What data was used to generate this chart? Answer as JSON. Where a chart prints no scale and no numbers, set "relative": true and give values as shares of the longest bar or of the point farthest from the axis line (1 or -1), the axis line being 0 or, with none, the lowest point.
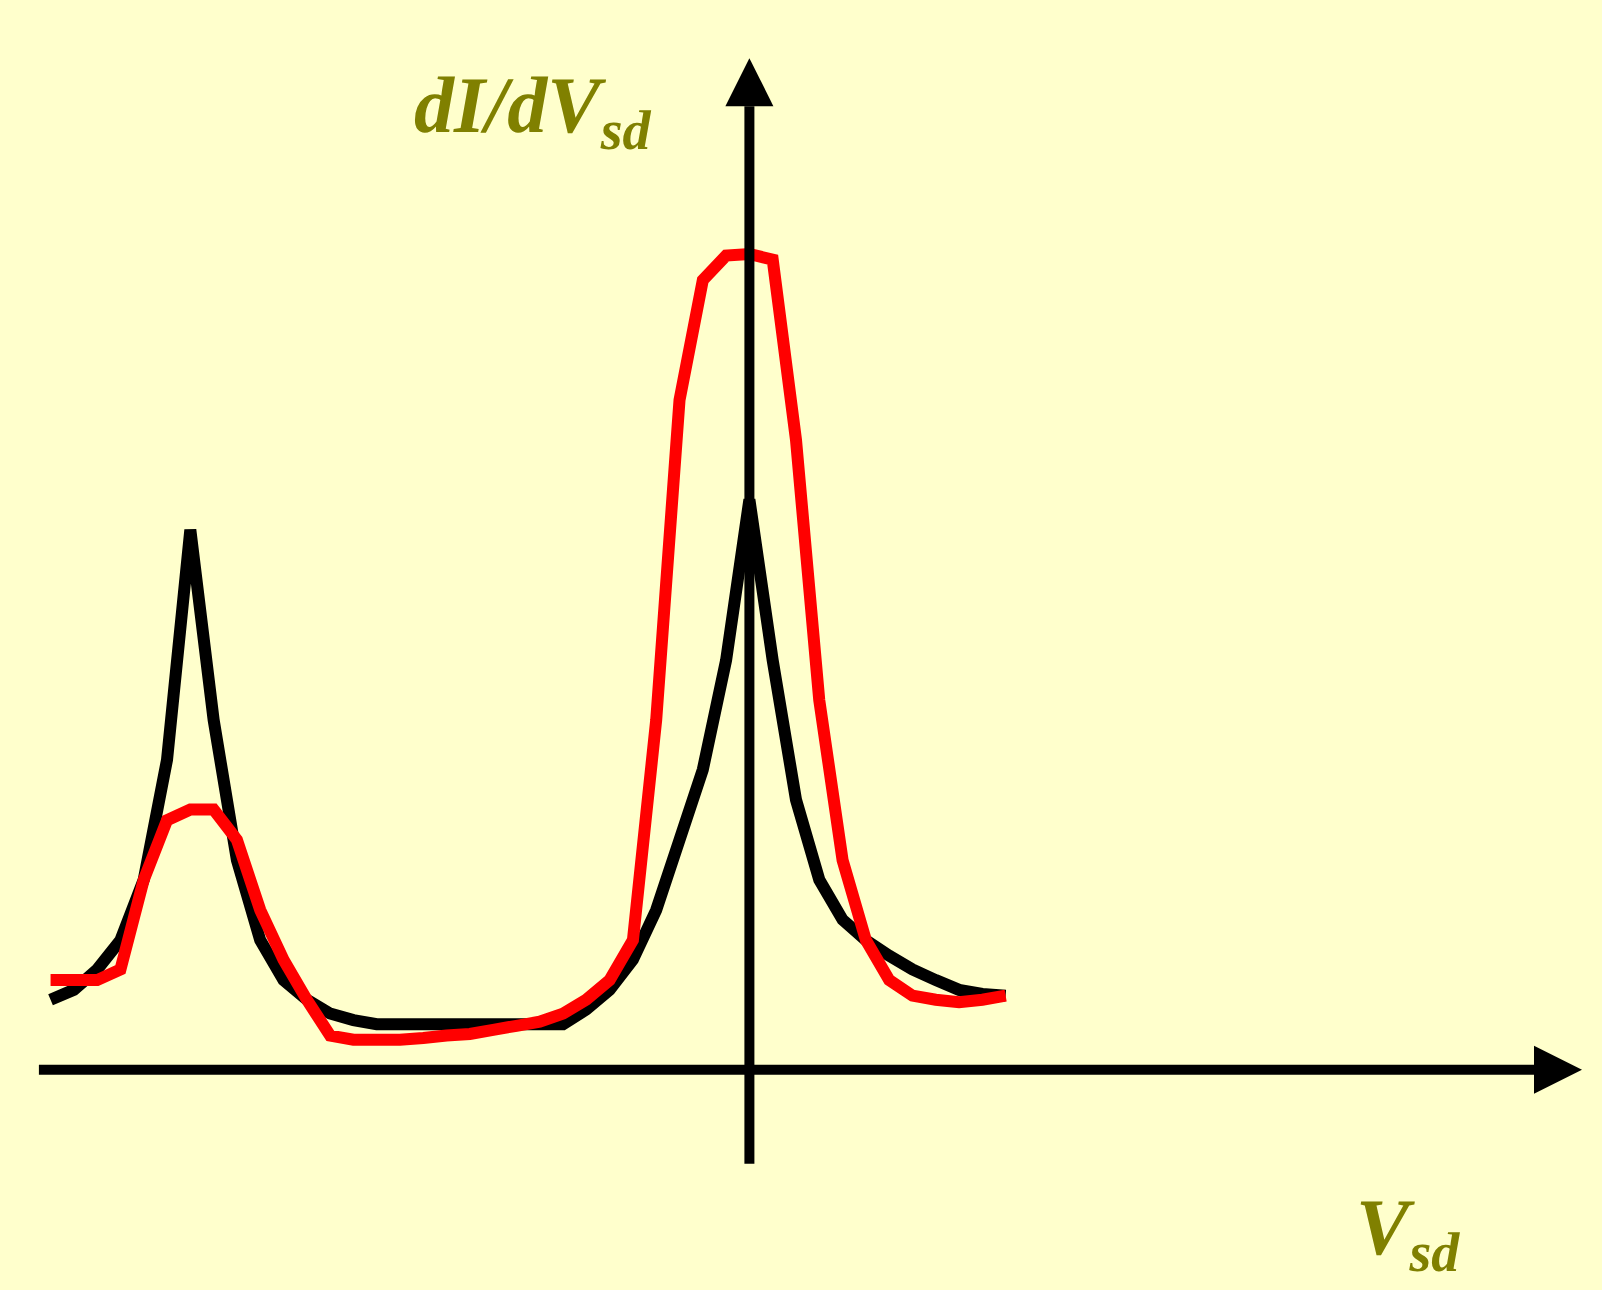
{
  "chart_data": {
    "type": "line",
    "relative": true,
    "xlabel": "V$_{sd}$",
    "ylabel": "dI/dV$_{sd}$",
    "grid": false,
    "marker": "none",
    "line_style": "solid",
    "categories": [
      null,
      null,
      null,
      null,
      null,
      null,
      null,
      null,
      null,
      null,
      null,
      null,
      null,
      null,
      null,
      null,
      null,
      null,
      null,
      null,
      null,
      null,
      null,
      null,
      null,
      null,
      null,
      null,
      null,
      null,
      null,
      null,
      null,
      null,
      null,
      null,
      null,
      null,
      null,
      null,
      null,
      null
    ],
    "series": [
      {
        "color": "#000000",
        "values": [
          0.086,
          0.098,
          0.123,
          0.159,
          0.233,
          0.38,
          0.662,
          0.429,
          0.257,
          0.159,
          0.11,
          0.086,
          0.069,
          0.061,
          0.056,
          0.056,
          0.056,
          0.056,
          0.056,
          0.056,
          0.056,
          0.056,
          0.056,
          0.074,
          0.098,
          0.135,
          0.196,
          0.282,
          0.368,
          0.502,
          0.699,
          0.502,
          0.331,
          0.233,
          0.184,
          0.159,
          0.14,
          0.123,
          0.11,
          0.098,
          0.093,
          0.091
        ]
      },
      {
        "color": "#ff0000",
        "values": [
          0.11,
          0.11,
          0.11,
          0.123,
          0.233,
          0.306,
          0.319,
          0.319,
          0.282,
          0.196,
          0.135,
          0.086,
          0.042,
          0.037,
          0.037,
          0.037,
          0.039,
          0.042,
          0.044,
          0.049,
          0.054,
          0.059,
          0.069,
          0.086,
          0.11,
          0.159,
          0.429,
          0.821,
          0.968,
          0.998,
          1,
          0.993,
          0.772,
          0.453,
          0.257,
          0.159,
          0.11,
          0.091,
          0.086,
          0.083,
          0.086,
          0.091
        ]
      }
    ]
  }
}
